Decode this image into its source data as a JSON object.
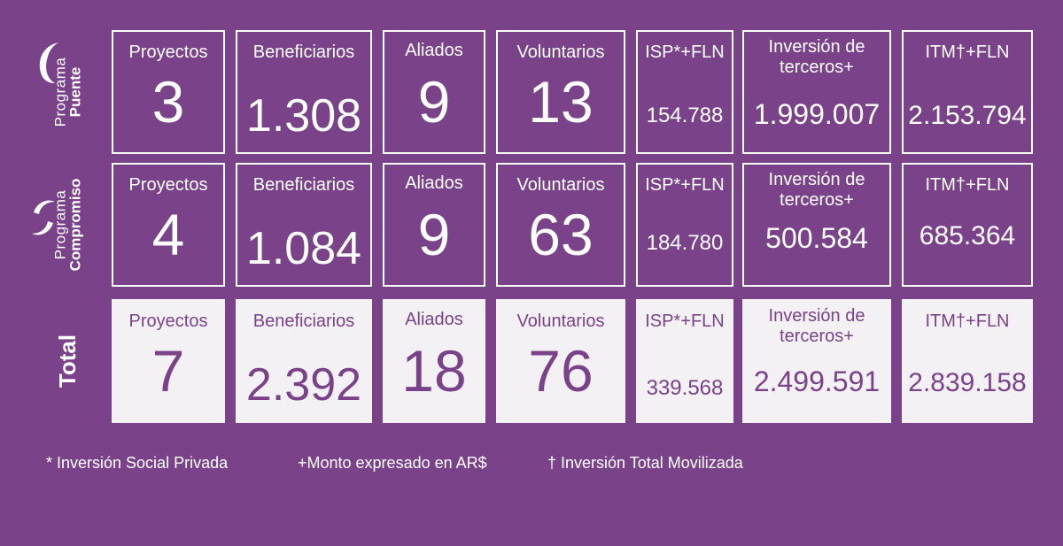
{
  "rows": [
    {
      "label_line1": "Programa",
      "label_line2": "Puente",
      "logo": "crescent-swoosh-icon",
      "cells": [
        {
          "label": "Proyectos",
          "value": "3"
        },
        {
          "label": "Beneficiarios",
          "value": "1.308"
        },
        {
          "label": "Aliados",
          "value": "9"
        },
        {
          "label": "Voluntarios",
          "value": "13"
        },
        {
          "label": "ISP*+FLN",
          "value": "154.788"
        },
        {
          "label": "Inversión de terceros+",
          "value": "1.999.007"
        },
        {
          "label": "ITM†+FLN",
          "value": "2.153.794"
        }
      ]
    },
    {
      "label_line1": "Programa",
      "label_line2": "Compromiso",
      "logo": "double-swoosh-icon",
      "cells": [
        {
          "label": "Proyectos",
          "value": "4"
        },
        {
          "label": "Beneficiarios",
          "value": "1.084"
        },
        {
          "label": "Aliados",
          "value": "9"
        },
        {
          "label": "Voluntarios",
          "value": "63"
        },
        {
          "label": "ISP*+FLN",
          "value": "184.780"
        },
        {
          "label": "Inversión de terceros+",
          "value": "500.584"
        },
        {
          "label": "ITM†+FLN",
          "value": "685.364"
        }
      ]
    },
    {
      "label_line1": "Total",
      "cells": [
        {
          "label": "Proyectos",
          "value": "7"
        },
        {
          "label": "Beneficiarios",
          "value": "2.392"
        },
        {
          "label": "Aliados",
          "value": "18"
        },
        {
          "label": "Voluntarios",
          "value": "76"
        },
        {
          "label": "ISP*+FLN",
          "value": "339.568"
        },
        {
          "label": "Inversión de terceros+",
          "value": "2.499.591"
        },
        {
          "label": "ITM†+FLN",
          "value": "2.839.158"
        }
      ]
    }
  ],
  "footnotes": {
    "isp": "* Inversión Social Privada",
    "monto": "+Monto expresado en AR$",
    "itm": "† Inversión Total Movilizada"
  },
  "colors": {
    "background": "#7a4289",
    "border": "#ffffff",
    "total_cell": "#f3f1f4"
  }
}
